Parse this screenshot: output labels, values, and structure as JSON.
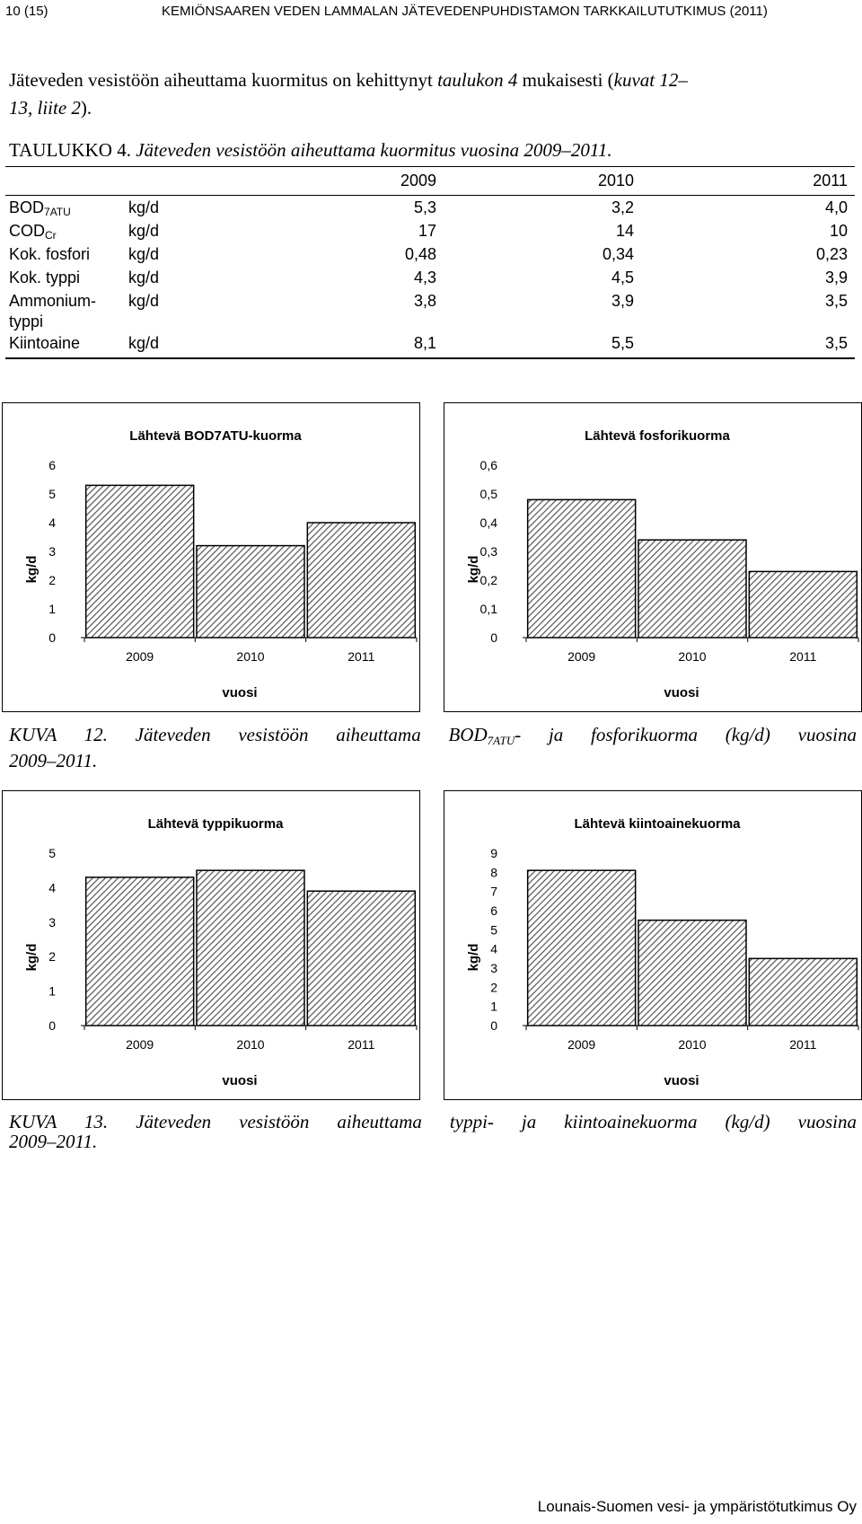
{
  "header": {
    "page_number": "10 (15)",
    "title": "KEMIÖNSAAREN VEDEN LAMMALAN JÄTEVEDENPUHDISTAMON TARKKAILUTUTKIMUS (2011)"
  },
  "intro": {
    "part1": "Jäteveden vesistöön aiheuttama kuormitus on kehittynyt ",
    "part2_italic": "taulukon 4",
    "part3": " mukaisesti (",
    "part4_italic": "kuvat 12",
    "line2_italic": "13, liite 2",
    "line2_end": ")."
  },
  "table": {
    "caption_label": "TAULUKKO 4. ",
    "caption_text": "Jäteveden vesistöön aiheuttama kuormitus vuosina 2009–2011.",
    "years": [
      "2009",
      "2010",
      "2011"
    ],
    "rows": [
      {
        "param": "BOD",
        "param_sub": "7ATU",
        "unit": "kg/d",
        "v": [
          "5,3",
          "3,2",
          "4,0"
        ]
      },
      {
        "param": "COD",
        "param_sub": "Cr",
        "unit": "kg/d",
        "v": [
          "17",
          "14",
          "10"
        ]
      },
      {
        "param": "Kok. fosfori",
        "param_sub": "",
        "unit": "kg/d",
        "v": [
          "0,48",
          "0,34",
          "0,23"
        ]
      },
      {
        "param": "Kok. typpi",
        "param_sub": "",
        "unit": "kg/d",
        "v": [
          "4,3",
          "4,5",
          "3,9"
        ]
      },
      {
        "param": "Ammonium-",
        "param2": "typpi",
        "param_sub": "",
        "unit": "kg/d",
        "v": [
          "3,8",
          "3,9",
          "3,5"
        ]
      },
      {
        "param": "Kiintoaine",
        "param_sub": "",
        "unit": "kg/d",
        "v": [
          "8,1",
          "5,5",
          "3,5"
        ]
      }
    ]
  },
  "chart_data": [
    {
      "type": "bar",
      "title": "Lähtevä BOD7ATU-kuorma",
      "xlabel": "vuosi",
      "ylabel": "kg/d",
      "categories": [
        "2009",
        "2010",
        "2011"
      ],
      "values": [
        5.3,
        3.2,
        4.0
      ],
      "ylim": [
        0,
        6
      ],
      "yticks": [
        "0",
        "1",
        "2",
        "3",
        "4",
        "5",
        "6"
      ],
      "grid": false
    },
    {
      "type": "bar",
      "title": "Lähtevä fosforikuorma",
      "xlabel": "vuosi",
      "ylabel": "kg/d",
      "categories": [
        "2009",
        "2010",
        "2011"
      ],
      "values": [
        0.48,
        0.34,
        0.23
      ],
      "ylim": [
        0,
        0.6
      ],
      "yticks": [
        "0",
        "0,1",
        "0,2",
        "0,3",
        "0,4",
        "0,5",
        "0,6"
      ],
      "grid": false
    },
    {
      "type": "bar",
      "title": "Lähtevä typpikuorma",
      "xlabel": "vuosi",
      "ylabel": "kg/d",
      "categories": [
        "2009",
        "2010",
        "2011"
      ],
      "values": [
        4.3,
        4.5,
        3.9
      ],
      "ylim": [
        0,
        5
      ],
      "yticks": [
        "0",
        "1",
        "2",
        "3",
        "4",
        "5"
      ],
      "grid": false
    },
    {
      "type": "bar",
      "title": "Lähtevä kiintoainekuorma",
      "xlabel": "vuosi",
      "ylabel": "kg/d",
      "categories": [
        "2009",
        "2010",
        "2011"
      ],
      "values": [
        8.1,
        5.5,
        3.5
      ],
      "ylim": [
        0,
        9
      ],
      "yticks": [
        "0",
        "1",
        "2",
        "3",
        "4",
        "5",
        "6",
        "7",
        "8",
        "9"
      ],
      "grid": false
    }
  ],
  "captions": {
    "fig12_line1_a": "KUVA 12. Jäteveden vesistöön aiheuttama BOD",
    "fig12_sub": "7ATU",
    "fig12_line1_b": "- ja fosforikuorma (kg/d) vuosina",
    "fig12_line2": "2009–2011.",
    "fig13_line1": "KUVA 13. Jäteveden vesistöön aiheuttama typpi- ja kiintoainekuorma (kg/d) vuosina",
    "fig13_line2": "2009–2011."
  },
  "footer": {
    "text": "Lounais-Suomen vesi- ja ympäristötutkimus Oy"
  }
}
